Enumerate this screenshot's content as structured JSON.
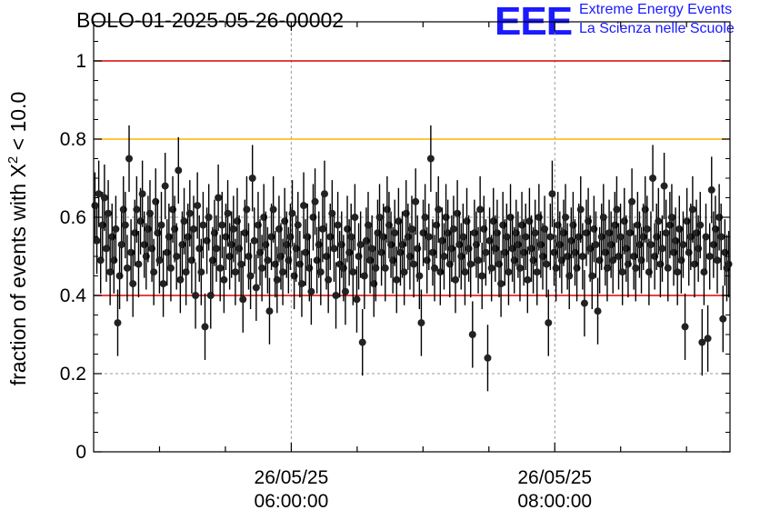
{
  "title": "BOLO-01-2025-05-26-00002",
  "logo": {
    "mark": "EEE",
    "line1": "Extreme Energy Events",
    "line2": "La Scienza nelle Scuole",
    "color": "#1a1aff"
  },
  "chart_data": {
    "type": "scatter",
    "title": "BOLO-01-2025-05-26-00002",
    "ylabel": "fraction of events with X² < 10.0",
    "ylabel_parts": {
      "prefix": "fraction of events with X",
      "sup": "2",
      "suffix": " < 10.0"
    },
    "xlabel": "",
    "ylim": [
      0,
      1.1
    ],
    "xlim_hours": [
      4.5,
      9.33
    ],
    "x_ticks": [
      {
        "hour": 6,
        "date": "26/05/25",
        "time": "06:00:00"
      },
      {
        "hour": 8,
        "date": "26/05/25",
        "time": "08:00:00"
      }
    ],
    "y_ticks": [
      {
        "value": 0,
        "label": "0"
      },
      {
        "value": 0.2,
        "label": "0.2"
      },
      {
        "value": 0.4,
        "label": "0.4"
      },
      {
        "value": 0.6,
        "label": "0.6"
      },
      {
        "value": 0.8,
        "label": "0.8"
      },
      {
        "value": 1,
        "label": "1"
      }
    ],
    "grid": true,
    "reference_lines": [
      {
        "y": 1.0,
        "color": "#e00000"
      },
      {
        "y": 0.8,
        "color": "#ffb400"
      },
      {
        "y": 0.4,
        "color": "#e00000"
      }
    ],
    "marker_color": "#000000",
    "error_bar_half": 0.085,
    "series": [
      {
        "x_range_hours": [
          4.51,
          9.32
        ],
        "values": [
          0.63,
          0.54,
          0.66,
          0.49,
          0.58,
          0.65,
          0.52,
          0.61,
          0.46,
          0.55,
          0.49,
          0.57,
          0.33,
          0.45,
          0.53,
          0.62,
          0.58,
          0.47,
          0.75,
          0.51,
          0.43,
          0.56,
          0.62,
          0.48,
          0.59,
          0.66,
          0.53,
          0.5,
          0.57,
          0.61,
          0.52,
          0.46,
          0.64,
          0.56,
          0.49,
          0.58,
          0.43,
          0.68,
          0.51,
          0.55,
          0.47,
          0.62,
          0.57,
          0.5,
          0.72,
          0.44,
          0.53,
          0.59,
          0.46,
          0.55,
          0.61,
          0.49,
          0.57,
          0.4,
          0.63,
          0.52,
          0.46,
          0.58,
          0.32,
          0.54,
          0.6,
          0.4,
          0.49,
          0.56,
          0.52,
          0.65,
          0.47,
          0.58,
          0.44,
          0.55,
          0.61,
          0.5,
          0.53,
          0.57,
          0.46,
          0.59,
          0.52,
          0.48,
          0.39,
          0.56,
          0.62,
          0.5,
          0.45,
          0.7,
          0.54,
          0.42,
          0.58,
          0.51,
          0.47,
          0.6,
          0.53,
          0.49,
          0.36,
          0.55,
          0.62,
          0.48,
          0.44,
          0.57,
          0.5,
          0.46,
          0.59,
          0.53,
          0.49,
          0.55,
          0.61,
          0.45,
          0.52,
          0.58,
          0.48,
          0.43,
          0.63,
          0.51,
          0.55,
          0.47,
          0.41,
          0.6,
          0.64,
          0.49,
          0.53,
          0.46,
          0.57,
          0.66,
          0.5,
          0.44,
          0.55,
          0.61,
          0.52,
          0.4,
          0.58,
          0.48,
          0.53,
          0.47,
          0.41,
          0.57,
          0.51,
          0.55,
          0.46,
          0.6,
          0.39,
          0.5,
          0.53,
          0.28,
          0.45,
          0.54,
          0.58,
          0.49,
          0.52,
          0.43,
          0.47,
          0.56,
          0.6,
          0.51,
          0.55,
          0.47,
          0.62,
          0.58,
          0.53,
          0.49,
          0.56,
          0.44,
          0.59,
          0.51,
          0.53,
          0.46,
          0.61,
          0.55,
          0.5,
          0.57,
          0.48,
          0.64,
          0.52,
          0.45,
          0.33,
          0.56,
          0.6,
          0.49,
          0.55,
          0.75,
          0.51,
          0.47,
          0.58,
          0.62,
          0.46,
          0.54,
          0.5,
          0.6,
          0.56,
          0.48,
          0.52,
          0.57,
          0.44,
          0.61,
          0.53,
          0.5,
          0.55,
          0.46,
          0.59,
          0.52,
          0.48,
          0.3,
          0.56,
          0.53,
          0.49,
          0.62,
          0.45,
          0.57,
          0.51,
          0.24,
          0.54,
          0.47,
          0.59,
          0.52,
          0.56,
          0.48,
          0.43,
          0.58,
          0.51,
          0.55,
          0.46,
          0.6,
          0.52,
          0.49,
          0.56,
          0.53,
          0.47,
          0.58,
          0.51,
          0.55,
          0.44,
          0.59,
          0.52,
          0.49,
          0.56,
          0.46,
          0.6,
          0.53,
          0.5,
          0.57,
          0.48,
          0.33,
          0.55,
          0.66,
          0.51,
          0.47,
          0.58,
          0.53,
          0.49,
          0.56,
          0.6,
          0.5,
          0.45,
          0.54,
          0.58,
          0.51,
          0.47,
          0.55,
          0.62,
          0.5,
          0.38,
          0.56,
          0.59,
          0.52,
          0.45,
          0.57,
          0.53,
          0.36,
          0.49,
          0.55,
          0.6,
          0.51,
          0.47,
          0.56,
          0.53,
          0.49,
          0.58,
          0.62,
          0.5,
          0.55,
          0.46,
          0.59,
          0.52,
          0.48,
          0.56,
          0.64,
          0.5,
          0.47,
          0.58,
          0.53,
          0.49,
          0.55,
          0.62,
          0.57,
          0.46,
          0.53,
          0.7,
          0.5,
          0.55,
          0.59,
          0.48,
          0.52,
          0.68,
          0.56,
          0.47,
          0.58,
          0.6,
          0.51,
          0.54,
          0.46,
          0.57,
          0.49,
          0.53,
          0.32,
          0.59,
          0.51,
          0.55,
          0.62,
          0.48,
          0.56,
          0.52,
          0.58,
          0.28,
          0.46,
          0.55,
          0.29,
          0.5,
          0.67,
          0.53,
          0.57,
          0.49,
          0.6,
          0.55,
          0.34,
          0.51,
          0.47,
          0.48
        ]
      }
    ]
  }
}
